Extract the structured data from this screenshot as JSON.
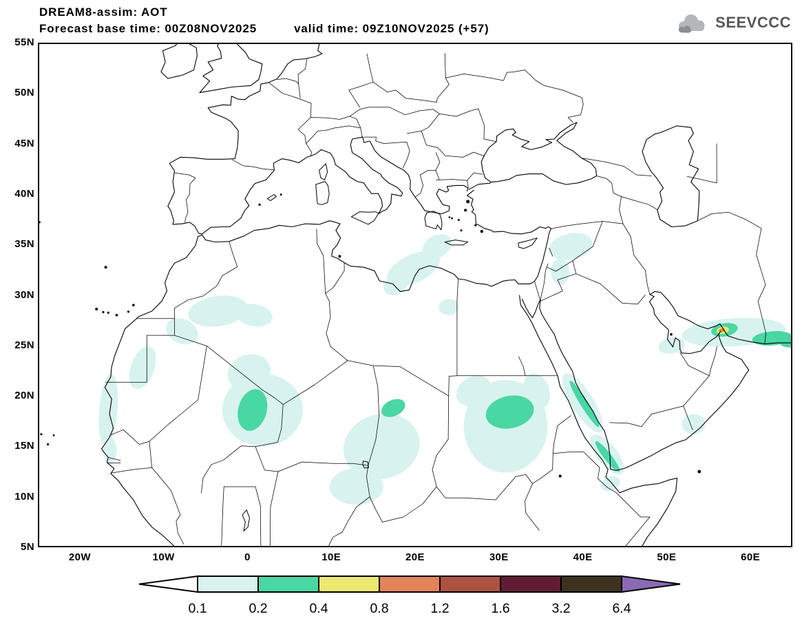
{
  "header": {
    "title": "DREAM8-assim: AOT",
    "subtitle_base": "Forecast base time: 00Z08NOV2025",
    "subtitle_valid": "valid time: 09Z10NOV2025 (+57)",
    "logo_text": "SEEVCCC"
  },
  "map": {
    "lat_ticks": [
      {
        "label": "55N",
        "lat": 55
      },
      {
        "label": "50N",
        "lat": 50
      },
      {
        "label": "45N",
        "lat": 45
      },
      {
        "label": "40N",
        "lat": 40
      },
      {
        "label": "35N",
        "lat": 35
      },
      {
        "label": "30N",
        "lat": 30
      },
      {
        "label": "25N",
        "lat": 25
      },
      {
        "label": "20N",
        "lat": 20
      },
      {
        "label": "15N",
        "lat": 15
      },
      {
        "label": "10N",
        "lat": 10
      },
      {
        "label": "5N",
        "lat": 5
      }
    ],
    "lon_ticks": [
      {
        "label": "20W",
        "lon": -20
      },
      {
        "label": "10W",
        "lon": -10
      },
      {
        "label": "0",
        "lon": 0
      },
      {
        "label": "10E",
        "lon": 10
      },
      {
        "label": "20E",
        "lon": 20
      },
      {
        "label": "30E",
        "lon": 30
      },
      {
        "label": "40E",
        "lon": 40
      },
      {
        "label": "50E",
        "lon": 50
      },
      {
        "label": "60E",
        "lon": 60
      }
    ]
  },
  "legend": {
    "values": [
      "0.1",
      "0.2",
      "0.4",
      "0.8",
      "1.2",
      "1.6",
      "3.2",
      "6.4"
    ],
    "left_arrow_color": "#ffffff",
    "box_colors": [
      "#d8f3ef",
      "#49d7a4",
      "#ece870",
      "#e2835a",
      "#ad5243",
      "#611c33",
      "#3b331f"
    ],
    "right_arrow_color": "#8c69b4",
    "level_fills": {
      "0.1": "#d8f3ef",
      "0.2": "#49d7a4",
      "0.4": "#ece870",
      "0.8": "#e2835a"
    }
  },
  "chart_data": {
    "type": "map",
    "model": "DREAM8-assim",
    "variable": "AOT",
    "forecast_base_time": "00Z08NOV2025",
    "valid_time": "09Z10NOV2025",
    "lead": "+57",
    "lon_range_deg": [
      -25,
      65
    ],
    "lat_range_deg": [
      5,
      55
    ],
    "contour_levels": [
      0.1,
      0.2,
      0.4,
      0.8,
      1.2,
      1.6,
      3.2,
      6.4
    ],
    "regions": [
      [
        -3.5,
        28.4,
        3.6,
        1.5,
        -8,
        0.1
      ],
      [
        0.8,
        28.0,
        2.2,
        1.1,
        10,
        0.1
      ],
      [
        -7.8,
        26.4,
        2.0,
        1.2,
        25,
        0.1
      ],
      [
        -12.5,
        22.8,
        1.4,
        2.2,
        20,
        0.1
      ],
      [
        -16.6,
        18.6,
        1.1,
        3.6,
        5,
        0.1
      ],
      [
        -16.4,
        14.6,
        0.8,
        1.3,
        0,
        0.1
      ],
      [
        1.8,
        18.6,
        4.8,
        3.6,
        0,
        0.1
      ],
      [
        0.2,
        22.3,
        2.6,
        1.8,
        -20,
        0.1
      ],
      [
        16.0,
        15.0,
        4.6,
        3.2,
        -15,
        0.1
      ],
      [
        13.0,
        11.0,
        3.2,
        1.8,
        0,
        0.1
      ],
      [
        27.0,
        20.5,
        2.2,
        1.4,
        -30,
        0.1
      ],
      [
        30.8,
        17.0,
        5.0,
        4.6,
        0,
        0.1
      ],
      [
        34.5,
        20.5,
        1.5,
        1.8,
        -20,
        0.1
      ],
      [
        24.0,
        28.8,
        1.2,
        0.8,
        0,
        0.1
      ],
      [
        19.8,
        32.6,
        3.4,
        1.4,
        -25,
        0.1
      ],
      [
        22.6,
        34.8,
        1.9,
        1.1,
        -30,
        0.1
      ],
      [
        17.6,
        30.9,
        1.4,
        0.9,
        -20,
        0.1
      ],
      [
        38.6,
        34.8,
        2.6,
        1.3,
        -12,
        0.1
      ],
      [
        37.3,
        32.3,
        1.1,
        1.3,
        0,
        0.1
      ],
      [
        40.0,
        19.3,
        1.3,
        3.4,
        -32,
        0.1
      ],
      [
        42.9,
        14.2,
        1.2,
        2.4,
        -38,
        0.1
      ],
      [
        43.3,
        11.3,
        1.2,
        0.7,
        -20,
        0.1
      ],
      [
        53.2,
        17.2,
        1.4,
        1.0,
        0,
        0.1
      ],
      [
        58.0,
        26.3,
        6.2,
        1.4,
        -4,
        0.1
      ],
      [
        50.6,
        25.0,
        1.6,
        0.8,
        -10,
        0.1
      ],
      [
        0.6,
        18.6,
        1.7,
        2.1,
        15,
        0.2
      ],
      [
        17.4,
        18.8,
        1.5,
        0.8,
        -25,
        0.2
      ],
      [
        31.3,
        18.4,
        2.9,
        1.6,
        -12,
        0.2
      ],
      [
        40.2,
        19.2,
        0.45,
        2.7,
        -32,
        0.2
      ],
      [
        42.95,
        14.0,
        0.45,
        1.9,
        -38,
        0.2
      ],
      [
        56.9,
        26.55,
        1.6,
        0.65,
        -10,
        0.2
      ],
      [
        62.6,
        25.7,
        2.4,
        0.7,
        -5,
        0.2
      ],
      [
        64.6,
        25.4,
        1.2,
        0.6,
        0,
        0.2
      ],
      [
        56.7,
        26.5,
        0.75,
        0.35,
        -10,
        0.4
      ],
      [
        56.6,
        26.5,
        0.38,
        0.18,
        -10,
        0.8
      ]
    ]
  }
}
